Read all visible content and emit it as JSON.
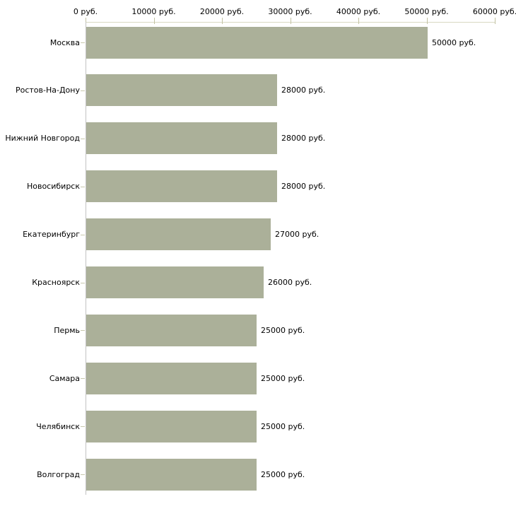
{
  "chart_data": {
    "type": "bar",
    "orientation": "horizontal",
    "title": "",
    "xlabel": "",
    "ylabel": "",
    "unit": "руб.",
    "categories": [
      "Москва",
      "Ростов-На-Дону",
      "Нижний Новгород",
      "Новосибирск",
      "Екатеринбург",
      "Красноярск",
      "Пермь",
      "Самара",
      "Челябинск",
      "Волгоград"
    ],
    "values": [
      50000,
      28000,
      28000,
      28000,
      27000,
      26000,
      25000,
      25000,
      25000,
      25000
    ],
    "value_labels": [
      "50000 руб.",
      "28000 руб.",
      "28000 руб.",
      "28000 руб.",
      "27000 руб.",
      "26000 руб.",
      "25000 руб.",
      "25000 руб.",
      "25000 руб.",
      "25000 руб."
    ],
    "x_ticks": [
      0,
      10000,
      20000,
      30000,
      40000,
      50000,
      60000
    ],
    "x_tick_labels": [
      "0 руб.",
      "10000 руб.",
      "20000 руб.",
      "30000 руб.",
      "40000 руб.",
      "50000 руб.",
      "60000 руб."
    ],
    "xlim": [
      0,
      60000
    ],
    "grid": false,
    "legend": null,
    "axis_position": "top",
    "colors": {
      "bar": "#abb099",
      "x_axis_line": "#d8d8c2",
      "x_tick": "#c2c2a2",
      "cat_tick": "#c8c8ae",
      "y_axis_line": "#c3c3c3",
      "text": "#000000",
      "background": "#ffffff"
    }
  }
}
